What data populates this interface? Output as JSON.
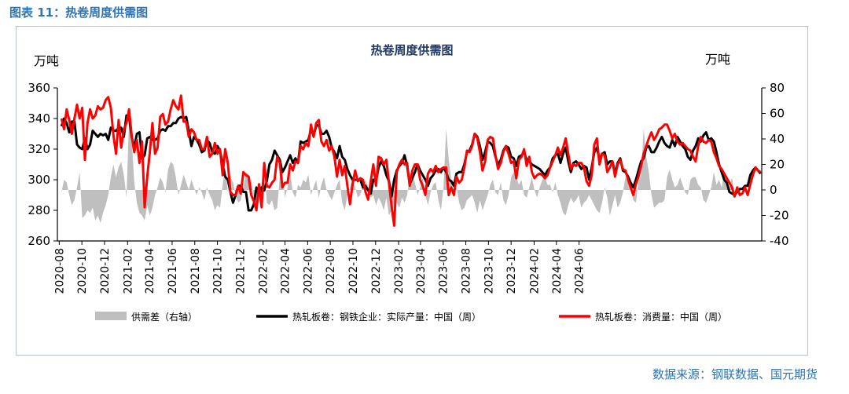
{
  "figure_caption": "图表 11：热卷周度供需图",
  "source_note": "数据来源：钢联数据、国元期货",
  "chart_data": {
    "type": "line",
    "title": "热卷周度供需图",
    "y_left_unit": "万吨",
    "y_right_unit": "万吨",
    "y_left_lim": [
      260,
      360
    ],
    "y_left_ticks": [
      260,
      280,
      300,
      320,
      340,
      360
    ],
    "y_right_lim": [
      -40,
      80
    ],
    "y_right_ticks": [
      -40,
      -20,
      0,
      20,
      40,
      60,
      80
    ],
    "x_tick_labels": [
      "2020-08",
      "2020-10",
      "2020-12",
      "2021-02",
      "2021-04",
      "2021-06",
      "2021-08",
      "2021-10",
      "2021-12",
      "2022-02",
      "2022-04",
      "2022-06",
      "2022-08",
      "2022-10",
      "2022-12",
      "2023-02",
      "2023-04",
      "2023-06",
      "2023-08",
      "2023-10",
      "2023-12",
      "2024-02",
      "2024-04",
      "2024-06"
    ],
    "x_start": "2020-08-07",
    "legend_position": "bottom",
    "series": [
      {
        "name": "供需差（右轴）",
        "kind": "area",
        "axis": "right",
        "color": "#bfbfbf",
        "values": [
          -2,
          8,
          6,
          -4,
          -12,
          -8,
          2,
          14,
          -22,
          -20,
          -16,
          -18,
          -14,
          -24,
          -20,
          -26,
          -18,
          -12,
          -4,
          10,
          20,
          10,
          18,
          22,
          12,
          -6,
          56,
          40,
          6,
          -10,
          -18,
          -20,
          -24,
          -12,
          -20,
          -14,
          -4,
          2,
          10,
          6,
          -2,
          16,
          22,
          20,
          10,
          -4,
          4,
          12,
          6,
          0,
          8,
          2,
          -4,
          2,
          -2,
          -8,
          2,
          -4,
          -8,
          -16,
          -12,
          -14,
          4,
          18,
          -2,
          10,
          6,
          -4,
          -10,
          -8,
          2,
          14,
          12,
          8,
          -6,
          -14,
          -4,
          4,
          20,
          -10,
          -12,
          -8,
          -16,
          -14,
          10,
          14,
          -6,
          2,
          14,
          -2,
          -6,
          4,
          2,
          8,
          6,
          12,
          -4,
          2,
          8,
          -6,
          4,
          10,
          0,
          -4,
          -8,
          -2,
          4,
          8,
          -10,
          -16,
          -4,
          2,
          10,
          2,
          -6,
          -4,
          4,
          8,
          2,
          -6,
          -4,
          -12,
          -6,
          -10,
          -16,
          -6,
          -20,
          -16,
          -14,
          -10,
          -14,
          -6,
          -10,
          -4,
          10,
          12,
          6,
          -4,
          2,
          10,
          -4,
          -12,
          -2,
          4,
          6,
          -8,
          -16,
          2,
          48,
          24,
          8,
          -6,
          2,
          -10,
          -16,
          -14,
          -8,
          -6,
          -4,
          -10,
          -18,
          -8,
          -16,
          -10,
          -4,
          4,
          8,
          -2,
          -4,
          6,
          -8,
          -12,
          -4,
          10,
          14,
          10,
          4,
          8,
          -4,
          -6,
          2,
          10,
          0,
          -6,
          2,
          8,
          10,
          4,
          4,
          -2,
          6,
          -4,
          -10,
          -18,
          -20,
          -12,
          -6,
          -10,
          -8,
          -4,
          -14,
          -10,
          -8,
          -4,
          -8,
          -12,
          -16,
          -18,
          -10,
          2,
          -6,
          -20,
          -12,
          -4,
          -14,
          -10,
          -2,
          10,
          6,
          2,
          -8,
          -10,
          6,
          12,
          48,
          26,
          14,
          -4,
          -14,
          -12,
          -10,
          -10,
          -8,
          10,
          16,
          8,
          2,
          4,
          10,
          4,
          -2,
          -4,
          8,
          10,
          10,
          4,
          2,
          -8,
          -10,
          -4,
          2,
          14,
          4,
          8,
          2,
          14,
          6,
          2,
          10,
          -4
        ]
      },
      {
        "name": "热轧板卷：钢铁企业：实际产量：中国（周）",
        "kind": "line",
        "axis": "left",
        "color": "#000000",
        "values": [
          335,
          340,
          337,
          331,
          338,
          338,
          323,
          321,
          320,
          327,
          320,
          323,
          332,
          330,
          328,
          330,
          329,
          330,
          326,
          334,
          332,
          332,
          334,
          334,
          328,
          342,
          341,
          328,
          321,
          330,
          331,
          314,
          316,
          327,
          328,
          326,
          326,
          327,
          332,
          333,
          332,
          335,
          335,
          337,
          337,
          340,
          341,
          340,
          341,
          332,
          322,
          328,
          326,
          323,
          318,
          319,
          326,
          324,
          318,
          317,
          322,
          319,
          310,
          302,
          300,
          292,
          285,
          290,
          296,
          296,
          292,
          292,
          280,
          280,
          284,
          295,
          290,
          295,
          293,
          299,
          310,
          313,
          319,
          316,
          313,
          305,
          308,
          312,
          316,
          311,
          314,
          311,
          325,
          324,
          325,
          326,
          333,
          329,
          335,
          336,
          330,
          330,
          332,
          328,
          321,
          318,
          314,
          322,
          315,
          313,
          307,
          303,
          300,
          300,
          300,
          300,
          295,
          296,
          293,
          291,
          300,
          299,
          308,
          312,
          309,
          303,
          299,
          289,
          300,
          306,
          309,
          311,
          316,
          309,
          297,
          301,
          305,
          310,
          306,
          303,
          300,
          296,
          301,
          303,
          306,
          307,
          305,
          308,
          305,
          300,
          299,
          296,
          304,
          305,
          305,
          310,
          318,
          319,
          323,
          330,
          328,
          322,
          313,
          318,
          325,
          324,
          322,
          315,
          310,
          313,
          319,
          322,
          321,
          315,
          314,
          309,
          315,
          316,
          318,
          313,
          312,
          310,
          309,
          308,
          307,
          305,
          303,
          306,
          308,
          314,
          316,
          317,
          311,
          317,
          321,
          312,
          305,
          311,
          312,
          310,
          307,
          309,
          308,
          300,
          308,
          318,
          321,
          313,
          317,
          318,
          310,
          312,
          312,
          304,
          311,
          314,
          306,
          305,
          302,
          298,
          295,
          300,
          306,
          312,
          314,
          321,
          322,
          318,
          318,
          321,
          325,
          328,
          324,
          322,
          321,
          326,
          322,
          328,
          325,
          322,
          320,
          315,
          313,
          319,
          322,
          327,
          325,
          329,
          331,
          326,
          327,
          325,
          318,
          310,
          305,
          300,
          298,
          292,
          291,
          290,
          292,
          294,
          294,
          296,
          296,
          303,
          306,
          308,
          306,
          304
        ]
      },
      {
        "name": "热轧板卷：消费量：中国（周）",
        "kind": "line",
        "axis": "left",
        "color": "#ff0000",
        "values": [
          340,
          333,
          346,
          339,
          330,
          340,
          349,
          340,
          347,
          313,
          337,
          346,
          340,
          342,
          348,
          346,
          347,
          352,
          354,
          347,
          329,
          317,
          339,
          321,
          333,
          337,
          346,
          329,
          318,
          326,
          311,
          325,
          282,
          302,
          318,
          337,
          317,
          321,
          341,
          343,
          336,
          338,
          346,
          352,
          348,
          346,
          355,
          338,
          338,
          328,
          333,
          331,
          326,
          326,
          320,
          320,
          328,
          315,
          317,
          324,
          317,
          320,
          303,
          320,
          311,
          292,
          290,
          290,
          296,
          291,
          305,
          303,
          302,
          290,
          286,
          280,
          297,
          282,
          311,
          296,
          295,
          298,
          300,
          315,
          311,
          295,
          298,
          298,
          310,
          306,
          312,
          311,
          322,
          320,
          324,
          322,
          336,
          328,
          337,
          339,
          325,
          322,
          326,
          319,
          322,
          315,
          302,
          313,
          303,
          309,
          296,
          284,
          297,
          306,
          299,
          301,
          300,
          292,
          287,
          299,
          310,
          296,
          315,
          314,
          310,
          313,
          298,
          283,
          270,
          305,
          310,
          313,
          310,
          311,
          296,
          306,
          310,
          310,
          300,
          296,
          290,
          304,
          307,
          305,
          309,
          305,
          307,
          308,
          308,
          290,
          295,
          290,
          302,
          298,
          300,
          308,
          319,
          318,
          322,
          330,
          327,
          318,
          306,
          312,
          326,
          328,
          327,
          316,
          307,
          311,
          318,
          322,
          317,
          311,
          312,
          301,
          313,
          315,
          320,
          309,
          315,
          305,
          301,
          303,
          304,
          303,
          301,
          303,
          308,
          312,
          316,
          321,
          316,
          321,
          327,
          317,
          307,
          310,
          309,
          311,
          311,
          308,
          299,
          296,
          303,
          323,
          327,
          310,
          317,
          316,
          305,
          308,
          312,
          302,
          310,
          313,
          307,
          306,
          300,
          295,
          290,
          297,
          302,
          309,
          317,
          322,
          327,
          331,
          326,
          329,
          333,
          334,
          336,
          336,
          332,
          327,
          330,
          325,
          323,
          324,
          322,
          320,
          319,
          315,
          312,
          322,
          328,
          325,
          324,
          326,
          325,
          318,
          314,
          309,
          307,
          304,
          301,
          298,
          295,
          289,
          295,
          290,
          291,
          295,
          290,
          297,
          303,
          308,
          306,
          305
        ]
      }
    ]
  }
}
